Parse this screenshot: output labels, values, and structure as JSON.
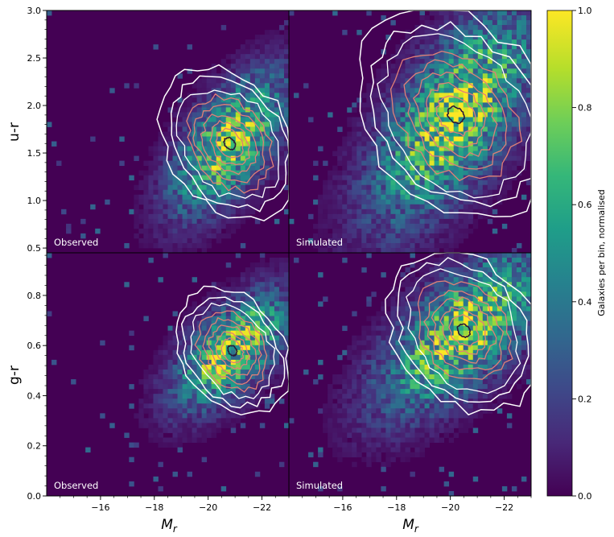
{
  "chart_data": [
    {
      "type": "heatmap",
      "panel": "top-left",
      "label": "Observed",
      "ylabel": "u-r",
      "xlabel": "",
      "xlim": [
        -14,
        -23
      ],
      "ylim": [
        0.45,
        3.0
      ],
      "yticks": [
        "0.5",
        "1.0",
        "1.5",
        "2.0",
        "2.5",
        "3.0"
      ],
      "yvals": [
        0.5,
        1.0,
        1.5,
        2.0,
        2.5,
        3.0
      ],
      "density_peak": {
        "x": -20.8,
        "y": 1.6
      },
      "density_spread": {
        "x": 1.1,
        "y": 0.38,
        "tilt": 0.6
      },
      "contours": {
        "white_levels": 3,
        "pink_levels": 5,
        "dark_core": true
      }
    },
    {
      "type": "heatmap",
      "panel": "top-right",
      "label": "Simulated",
      "ylabel": "",
      "xlabel": "",
      "xlim": [
        -14,
        -23
      ],
      "ylim": [
        0.45,
        3.0
      ],
      "density_peak": {
        "x": -20.2,
        "y": 1.9
      },
      "density_spread": {
        "x": 1.6,
        "y": 0.55,
        "tilt": 0.7
      },
      "contours": {
        "white_levels": 3,
        "pink_levels": 5,
        "dark_core": true
      }
    },
    {
      "type": "heatmap",
      "panel": "bottom-left",
      "label": "Observed",
      "ylabel": "g-r",
      "xlabel": "M_r",
      "xlim": [
        -14,
        -23
      ],
      "ylim": [
        0.0,
        0.97
      ],
      "xticks": [
        "−16",
        "−18",
        "−20",
        "−22"
      ],
      "xvals": [
        -16,
        -18,
        -20,
        -22
      ],
      "yticks": [
        "0.0",
        "0.2",
        "0.4",
        "0.6",
        "0.8"
      ],
      "yvals": [
        0.0,
        0.2,
        0.4,
        0.6,
        0.8
      ],
      "density_peak": {
        "x": -20.9,
        "y": 0.58
      },
      "density_spread": {
        "x": 1.1,
        "y": 0.12,
        "tilt": 0.6
      },
      "contours": {
        "white_levels": 3,
        "pink_levels": 5,
        "dark_core": true
      }
    },
    {
      "type": "heatmap",
      "panel": "bottom-right",
      "label": "Simulated",
      "ylabel": "",
      "xlabel": "M_r",
      "xlim": [
        -14,
        -23
      ],
      "ylim": [
        0.0,
        0.97
      ],
      "xticks": [
        "−16",
        "−18",
        "−20",
        "−22"
      ],
      "xvals": [
        -16,
        -18,
        -20,
        -22
      ],
      "density_peak": {
        "x": -20.5,
        "y": 0.66
      },
      "density_spread": {
        "x": 1.6,
        "y": 0.16,
        "tilt": 0.7
      },
      "contours": {
        "white_levels": 3,
        "pink_levels": 5,
        "dark_core": true
      }
    }
  ],
  "colorbar": {
    "label": "Galaxies per bin, normalised",
    "ticks": [
      "0.0",
      "0.2",
      "0.4",
      "0.6",
      "0.8",
      "1.0"
    ],
    "values": [
      0.0,
      0.2,
      0.4,
      0.6,
      0.8,
      1.0
    ],
    "colormap": "viridis"
  },
  "xlabel": {
    "main": "M",
    "sub": "r"
  },
  "colors": {
    "background": "#440154",
    "contour_white": "#ffffff",
    "contour_pink": "#e07f77",
    "contour_dark": "#2a1a3a",
    "viridis": [
      "#440154",
      "#482878",
      "#3e4989",
      "#31688e",
      "#26828e",
      "#1f9e89",
      "#35b779",
      "#6ece58",
      "#b5de2b",
      "#fde725"
    ]
  }
}
